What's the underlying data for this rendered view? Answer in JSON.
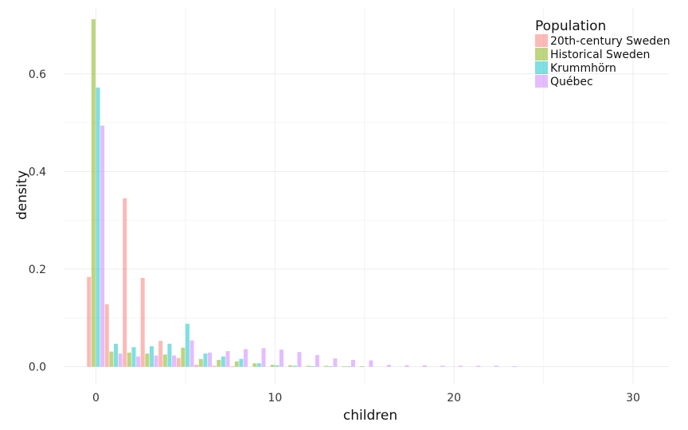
{
  "chart_data": {
    "type": "bar",
    "title": "",
    "xlabel": "children",
    "ylabel": "density",
    "xlim": [
      -1.8,
      32
    ],
    "ylim": [
      -0.035,
      0.735
    ],
    "x_ticks": [
      0,
      10,
      20,
      30
    ],
    "y_ticks": [
      0.0,
      0.2,
      0.4,
      0.6
    ],
    "y_tick_labels": [
      "0.0",
      "0.2",
      "0.4",
      "0.6"
    ],
    "grid": true,
    "legend_position": "top-right",
    "legend_title": "Population",
    "categories": [
      0,
      1,
      2,
      3,
      4,
      5,
      6,
      7,
      8,
      9,
      10,
      11,
      12,
      13,
      14,
      15,
      16,
      17,
      18,
      19,
      20,
      21,
      22,
      23
    ],
    "series": [
      {
        "name": "20th-century Sweden",
        "color": "#F8766D",
        "values": [
          0.184,
          0.128,
          0.345,
          0.182,
          0.053,
          0.018,
          0.004,
          0.002,
          0.001,
          0,
          0,
          0,
          0,
          0,
          0,
          0,
          0,
          0,
          0,
          0,
          0,
          0,
          0,
          0
        ]
      },
      {
        "name": "Historical Sweden",
        "color": "#7CAE00",
        "values": [
          0.712,
          0.031,
          0.029,
          0.027,
          0.025,
          0.039,
          0.016,
          0.014,
          0.011,
          0.007,
          0.004,
          0.003,
          0.002,
          0.002,
          0.001,
          0.001,
          0,
          0,
          0,
          0,
          0,
          0,
          0,
          0
        ]
      },
      {
        "name": "Krummhörn",
        "color": "#00BFC4",
        "values": [
          0.572,
          0.047,
          0.04,
          0.042,
          0.047,
          0.088,
          0.027,
          0.021,
          0.016,
          0.007,
          0.003,
          0.002,
          0.001,
          0.001,
          0.001,
          0,
          0,
          0,
          0,
          0,
          0,
          0,
          0,
          0
        ]
      },
      {
        "name": "Québec",
        "color": "#C77CFF",
        "values": [
          0.494,
          0.027,
          0.021,
          0.023,
          0.023,
          0.054,
          0.029,
          0.032,
          0.036,
          0.038,
          0.035,
          0.03,
          0.024,
          0.017,
          0.014,
          0.013,
          0.004,
          0.003,
          0.003,
          0.002,
          0.002,
          0.002,
          0.002,
          0.001
        ]
      }
    ]
  }
}
